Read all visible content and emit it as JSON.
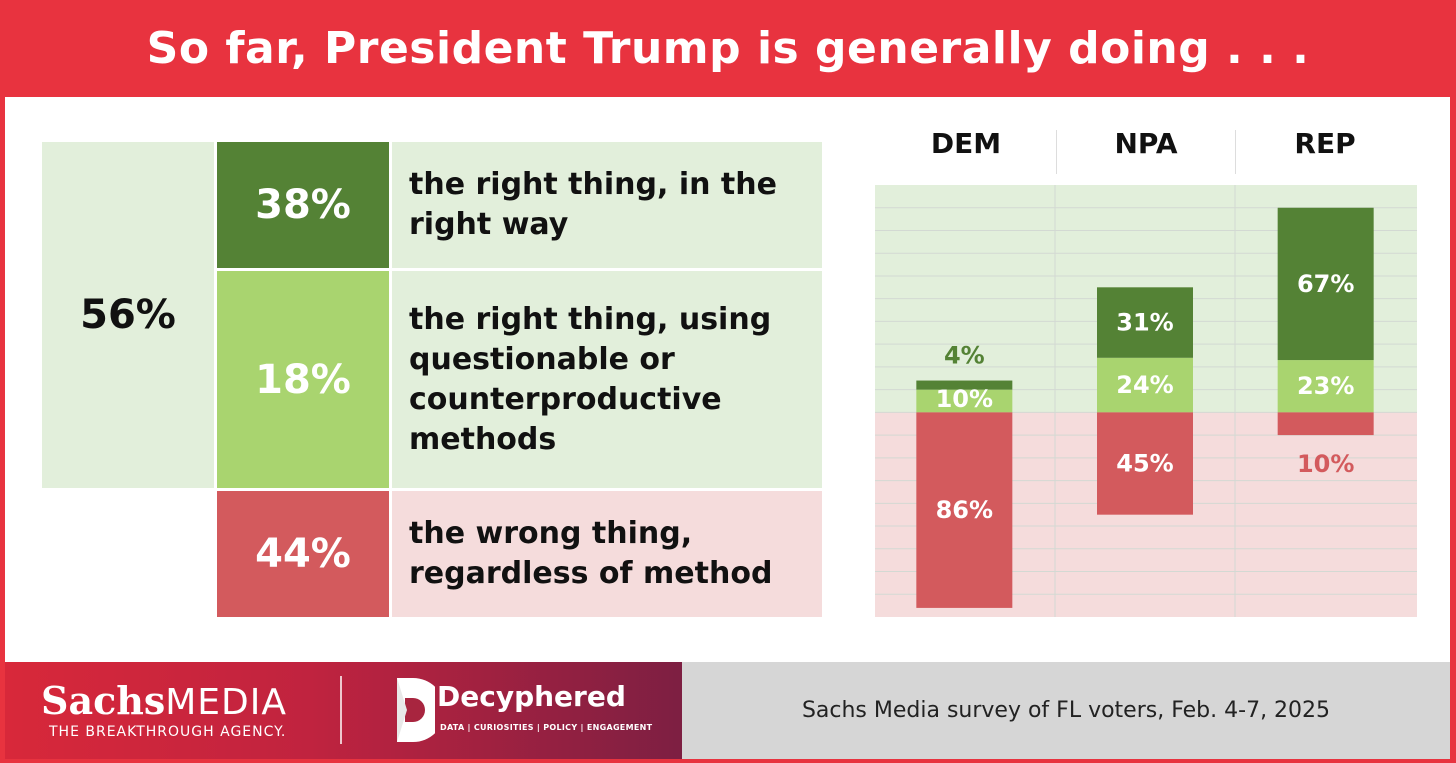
{
  "title": "So far, President Trump is generally doing . . .",
  "summary": {
    "total_right": "56%",
    "rows": [
      {
        "pct": "38%",
        "label_lines": [
          "the right thing, in the",
          "right way"
        ],
        "color": "#548235"
      },
      {
        "pct": "18%",
        "label_lines": [
          "the right thing, using",
          "questionable or",
          "counterproductive",
          "methods"
        ],
        "color": "#a9d46f"
      },
      {
        "pct": "44%",
        "label_lines": [
          "the wrong thing,",
          "regardless of method"
        ],
        "color": "#d35a5d"
      }
    ]
  },
  "chart_data": {
    "type": "bar",
    "stacked": "diverging",
    "categories": [
      "DEM",
      "NPA",
      "REP"
    ],
    "series": [
      {
        "name": "the right thing, in the right way",
        "values": [
          4,
          31,
          67
        ],
        "color": "#548235"
      },
      {
        "name": "the right thing, using questionable or counterproductive methods",
        "values": [
          10,
          24,
          23
        ],
        "color": "#a9d46f"
      },
      {
        "name": "the wrong thing, regardless of method",
        "values": [
          86,
          45,
          10
        ],
        "color": "#d35a5d"
      }
    ],
    "labels": [
      [
        "4%",
        "31%",
        "67%"
      ],
      [
        "10%",
        "24%",
        "23%"
      ],
      [
        "86%",
        "45%",
        "10%"
      ]
    ],
    "ylim": [
      -90,
      100
    ],
    "grid": true,
    "background_positive": "#e2efdb",
    "background_negative": "#f5dcdc"
  },
  "footer": {
    "brand_sachs": "Sachs",
    "brand_media": "MEDIA",
    "brand_tagline": "THE BREAKTHROUGH AGENCY.",
    "partner_name": "Decyphered",
    "partner_tagline": "DATA | CURIOSITIES | POLICY | ENGAGEMENT",
    "source": "Sachs Media survey of FL voters, Feb. 4-7, 2025"
  }
}
